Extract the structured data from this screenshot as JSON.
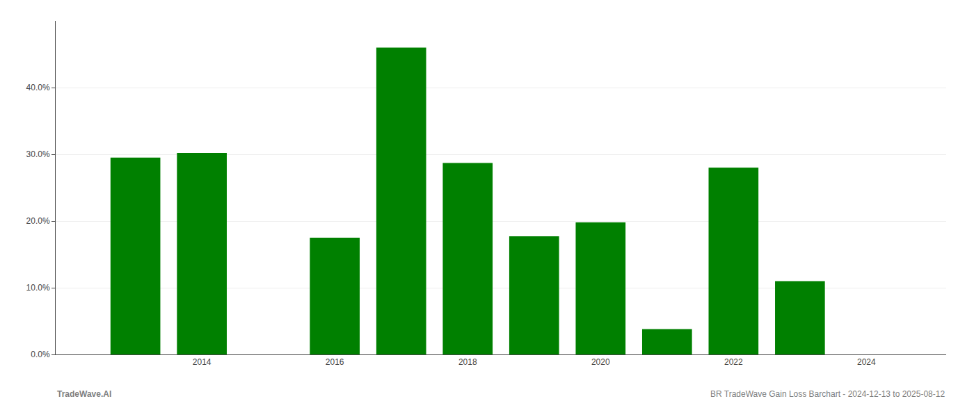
{
  "chart_data": {
    "type": "bar",
    "x": [
      2013,
      2014,
      2016,
      2017,
      2018,
      2019,
      2020,
      2021,
      2022,
      2023
    ],
    "values": [
      0.295,
      0.302,
      0.175,
      0.46,
      0.287,
      0.177,
      0.198,
      0.038,
      0.28,
      0.11
    ],
    "color": "#008000",
    "xlim": [
      2011.8,
      2025.2
    ],
    "xticks": [
      2014,
      2016,
      2018,
      2020,
      2022,
      2024
    ],
    "ylim": [
      0.0,
      0.5
    ],
    "yticks": [
      {
        "value": 0.0,
        "label": "0.0%"
      },
      {
        "value": 0.1,
        "label": "10.0%"
      },
      {
        "value": 0.2,
        "label": "20.0%"
      },
      {
        "value": 0.3,
        "label": "30.0%"
      },
      {
        "value": 0.4,
        "label": "40.0%"
      }
    ],
    "grid": true,
    "annotations": [
      "TradeWave.AI",
      "BR TradeWave Gain Loss Barchart - 2024-12-13 to 2025-08-12"
    ]
  }
}
